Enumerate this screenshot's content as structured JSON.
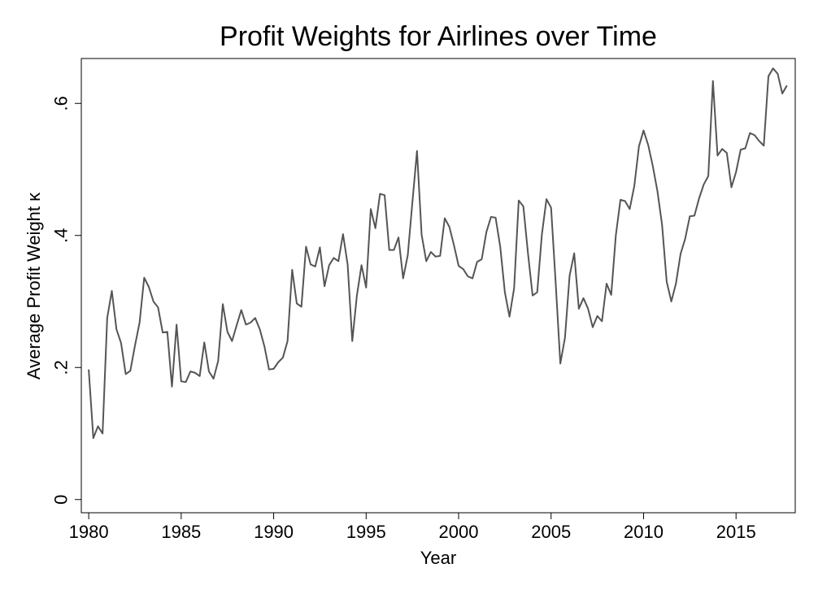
{
  "chart_data": {
    "type": "line",
    "title": "Profit Weights for Airlines over Time",
    "xlabel": "Year",
    "ylabel": "Average Profit Weight κ",
    "xlim": [
      1979.6,
      2018.2
    ],
    "ylim": [
      -0.02,
      0.668
    ],
    "x_ticks": [
      1980,
      1985,
      1990,
      1995,
      2000,
      2005,
      2010,
      2015
    ],
    "x_tick_labels": [
      "1980",
      "1985",
      "1990",
      "1995",
      "2000",
      "2005",
      "2010",
      "2015"
    ],
    "y_ticks": [
      0,
      0.2,
      0.4,
      0.6
    ],
    "y_tick_labels": [
      "0",
      ".2",
      ".4",
      ".6"
    ],
    "grid": false,
    "line_color": "#555555",
    "series": [
      {
        "x": [
          1980.0,
          1980.25,
          1980.5,
          1980.75,
          1981.0,
          1981.25,
          1981.5,
          1981.75,
          1982.0,
          1982.25,
          1982.5,
          1982.75,
          1983.0,
          1983.25,
          1983.5,
          1983.75,
          1984.0,
          1984.25,
          1984.5,
          1984.75,
          1985.0,
          1985.25,
          1985.5,
          1985.75,
          1986.0,
          1986.25,
          1986.5,
          1986.75,
          1987.0,
          1987.25,
          1987.5,
          1987.75,
          1988.0,
          1988.25,
          1988.5,
          1988.75,
          1989.0,
          1989.25,
          1989.5,
          1989.75,
          1990.0,
          1990.25,
          1990.5,
          1990.75,
          1991.0,
          1991.25,
          1991.5,
          1991.75,
          1992.0,
          1992.25,
          1992.5,
          1992.75,
          1993.0,
          1993.25,
          1993.5,
          1993.75,
          1994.0,
          1994.25,
          1994.5,
          1994.75,
          1995.0,
          1995.25,
          1995.5,
          1995.75,
          1996.0,
          1996.25,
          1996.5,
          1996.75,
          1997.0,
          1997.25,
          1997.5,
          1997.75,
          1998.0,
          1998.25,
          1998.5,
          1998.75,
          1999.0,
          1999.25,
          1999.5,
          1999.75,
          2000.0,
          2000.25,
          2000.5,
          2000.75,
          2001.0,
          2001.25,
          2001.5,
          2001.75,
          2002.0,
          2002.25,
          2002.5,
          2002.75,
          2003.0,
          2003.25,
          2003.5,
          2003.75,
          2004.0,
          2004.25,
          2004.5,
          2004.75,
          2005.0,
          2005.25,
          2005.5,
          2005.75,
          2006.0,
          2006.25,
          2006.5,
          2006.75,
          2007.0,
          2007.25,
          2007.5,
          2007.75,
          2008.0,
          2008.25,
          2008.5,
          2008.75,
          2009.0,
          2009.25,
          2009.5,
          2009.75,
          2010.0,
          2010.25,
          2010.5,
          2010.75,
          2011.0,
          2011.25,
          2011.5,
          2011.75,
          2012.0,
          2012.25,
          2012.5,
          2012.75,
          2013.0,
          2013.25,
          2013.5,
          2013.75,
          2014.0,
          2014.25,
          2014.5,
          2014.75,
          2015.0,
          2015.25,
          2015.5,
          2015.75,
          2016.0,
          2016.25,
          2016.5,
          2016.75,
          2017.0,
          2017.25,
          2017.5,
          2017.75
        ],
        "values": [
          0.197,
          0.093,
          0.111,
          0.1,
          0.275,
          0.316,
          0.258,
          0.237,
          0.19,
          0.195,
          0.233,
          0.268,
          0.336,
          0.322,
          0.3,
          0.291,
          0.253,
          0.254,
          0.171,
          0.265,
          0.179,
          0.178,
          0.194,
          0.192,
          0.187,
          0.238,
          0.194,
          0.183,
          0.21,
          0.296,
          0.254,
          0.24,
          0.264,
          0.287,
          0.265,
          0.268,
          0.275,
          0.258,
          0.232,
          0.197,
          0.198,
          0.208,
          0.215,
          0.24,
          0.348,
          0.297,
          0.292,
          0.383,
          0.356,
          0.353,
          0.382,
          0.323,
          0.355,
          0.366,
          0.361,
          0.402,
          0.356,
          0.24,
          0.309,
          0.355,
          0.321,
          0.44,
          0.411,
          0.463,
          0.461,
          0.378,
          0.378,
          0.397,
          0.335,
          0.37,
          0.45,
          0.528,
          0.401,
          0.361,
          0.375,
          0.368,
          0.369,
          0.426,
          0.413,
          0.385,
          0.354,
          0.349,
          0.338,
          0.335,
          0.36,
          0.364,
          0.405,
          0.428,
          0.427,
          0.383,
          0.314,
          0.277,
          0.32,
          0.453,
          0.444,
          0.373,
          0.309,
          0.314,
          0.401,
          0.455,
          0.442,
          0.327,
          0.206,
          0.245,
          0.339,
          0.373,
          0.289,
          0.305,
          0.289,
          0.261,
          0.278,
          0.27,
          0.327,
          0.31,
          0.4,
          0.454,
          0.452,
          0.44,
          0.475,
          0.535,
          0.559,
          0.537,
          0.505,
          0.467,
          0.416,
          0.33,
          0.3,
          0.327,
          0.372,
          0.395,
          0.429,
          0.43,
          0.456,
          0.477,
          0.49,
          0.634,
          0.521,
          0.531,
          0.525,
          0.473,
          0.496,
          0.53,
          0.532,
          0.555,
          0.552,
          0.543,
          0.536,
          0.641,
          0.653,
          0.645,
          0.615,
          0.627
        ]
      }
    ]
  }
}
